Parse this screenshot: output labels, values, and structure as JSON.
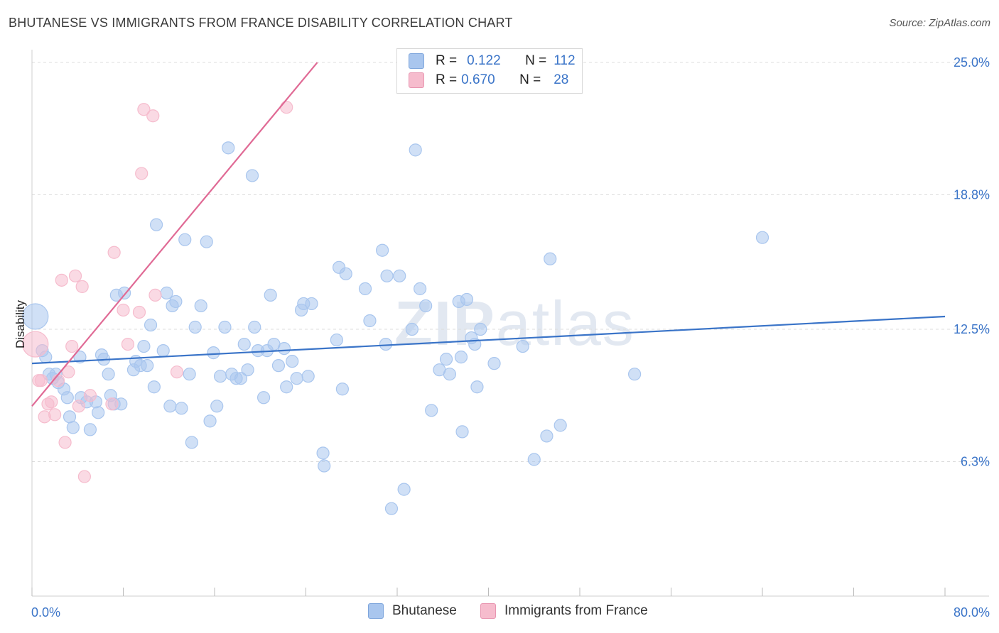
{
  "header": {
    "title": "BHUTANESE VS IMMIGRANTS FROM FRANCE DISABILITY CORRELATION CHART",
    "source": "Source: ZipAtlas.com"
  },
  "watermark": {
    "bold": "ZIP",
    "light": "atlas"
  },
  "legend": {
    "rows": [
      {
        "r_label": "R =",
        "r_value": "0.122",
        "n_label": "N =",
        "n_value": "112",
        "color": "#a9c6ee"
      },
      {
        "r_label": "R =",
        "r_value": "0.670",
        "n_label": "N =",
        "n_value": "28",
        "color": "#f6bccd"
      }
    ]
  },
  "bottom_legend": {
    "items": [
      {
        "label": "Bhutanese",
        "color": "#a9c6ee"
      },
      {
        "label": "Immigrants from France",
        "color": "#f6bccd"
      }
    ]
  },
  "chart_data": {
    "type": "scatter",
    "title": "BHUTANESE VS IMMIGRANTS FROM FRANCE DISABILITY CORRELATION CHART",
    "xlabel": "",
    "ylabel": "Disability",
    "xlim": [
      0,
      80
    ],
    "ylim": [
      0,
      25.6
    ],
    "x_tick_labels": [
      "0.0%",
      "80.0%"
    ],
    "y_ticks": [
      6.3,
      12.5,
      18.8,
      25.0
    ],
    "y_tick_labels": [
      "6.3%",
      "12.5%",
      "18.8%",
      "25.0%"
    ],
    "grid": true,
    "legend_position": "top-center",
    "series": [
      {
        "name": "Bhutanese",
        "color": "#3a74c8",
        "fill": "#a9c6ee",
        "trend": {
          "x": [
            0,
            80
          ],
          "y": [
            10.9,
            13.1
          ]
        },
        "points": [
          [
            0.3,
            13.1
          ],
          [
            0.9,
            11.5
          ],
          [
            1.2,
            11.2
          ],
          [
            1.5,
            10.4
          ],
          [
            1.8,
            10.2
          ],
          [
            2.1,
            10.4
          ],
          [
            2.3,
            10.0
          ],
          [
            2.8,
            9.7
          ],
          [
            3.1,
            9.3
          ],
          [
            3.3,
            8.4
          ],
          [
            3.6,
            7.9
          ],
          [
            4.2,
            11.2
          ],
          [
            4.3,
            9.3
          ],
          [
            4.8,
            9.1
          ],
          [
            5.1,
            7.8
          ],
          [
            5.6,
            9.1
          ],
          [
            5.8,
            8.6
          ],
          [
            6.1,
            11.3
          ],
          [
            6.3,
            11.1
          ],
          [
            6.7,
            10.4
          ],
          [
            6.9,
            9.4
          ],
          [
            7.2,
            9.0
          ],
          [
            7.4,
            14.1
          ],
          [
            7.8,
            9.0
          ],
          [
            8.1,
            14.2
          ],
          [
            8.9,
            10.6
          ],
          [
            9.1,
            11.0
          ],
          [
            9.5,
            10.8
          ],
          [
            9.8,
            11.7
          ],
          [
            10.1,
            10.8
          ],
          [
            10.4,
            12.7
          ],
          [
            10.7,
            9.8
          ],
          [
            10.9,
            17.4
          ],
          [
            11.5,
            11.5
          ],
          [
            11.8,
            14.2
          ],
          [
            12.1,
            8.9
          ],
          [
            12.3,
            13.6
          ],
          [
            12.6,
            13.8
          ],
          [
            13.1,
            8.8
          ],
          [
            13.4,
            16.7
          ],
          [
            13.8,
            10.4
          ],
          [
            14.0,
            7.2
          ],
          [
            14.3,
            12.6
          ],
          [
            14.8,
            13.6
          ],
          [
            15.3,
            16.6
          ],
          [
            15.6,
            8.2
          ],
          [
            15.9,
            11.4
          ],
          [
            16.2,
            8.9
          ],
          [
            16.5,
            10.3
          ],
          [
            16.9,
            12.6
          ],
          [
            17.2,
            21.0
          ],
          [
            17.5,
            10.4
          ],
          [
            17.9,
            10.2
          ],
          [
            18.3,
            10.2
          ],
          [
            18.6,
            11.8
          ],
          [
            18.9,
            10.6
          ],
          [
            19.3,
            19.7
          ],
          [
            19.5,
            12.6
          ],
          [
            19.8,
            11.5
          ],
          [
            20.3,
            9.3
          ],
          [
            20.6,
            11.5
          ],
          [
            20.9,
            14.1
          ],
          [
            21.2,
            11.8
          ],
          [
            21.6,
            10.8
          ],
          [
            22.1,
            11.6
          ],
          [
            22.3,
            9.8
          ],
          [
            22.8,
            11.0
          ],
          [
            23.2,
            10.2
          ],
          [
            23.6,
            13.4
          ],
          [
            23.8,
            13.7
          ],
          [
            24.2,
            10.3
          ],
          [
            24.5,
            13.7
          ],
          [
            25.5,
            6.7
          ],
          [
            25.6,
            6.1
          ],
          [
            26.7,
            12.0
          ],
          [
            26.9,
            15.4
          ],
          [
            27.2,
            9.7
          ],
          [
            27.5,
            15.1
          ],
          [
            29.2,
            14.4
          ],
          [
            29.6,
            12.9
          ],
          [
            30.7,
            16.2
          ],
          [
            31.0,
            11.8
          ],
          [
            31.1,
            15.0
          ],
          [
            31.5,
            4.1
          ],
          [
            32.2,
            15.0
          ],
          [
            32.6,
            5.0
          ],
          [
            33.3,
            12.5
          ],
          [
            33.6,
            20.9
          ],
          [
            34.0,
            14.4
          ],
          [
            34.5,
            13.6
          ],
          [
            35.0,
            8.7
          ],
          [
            35.7,
            10.6
          ],
          [
            36.3,
            11.1
          ],
          [
            36.6,
            10.4
          ],
          [
            37.4,
            13.8
          ],
          [
            37.6,
            11.2
          ],
          [
            37.7,
            7.7
          ],
          [
            38.1,
            13.9
          ],
          [
            38.5,
            12.1
          ],
          [
            38.8,
            11.8
          ],
          [
            39.0,
            9.8
          ],
          [
            39.3,
            12.5
          ],
          [
            40.5,
            10.9
          ],
          [
            43.0,
            11.7
          ],
          [
            44.0,
            6.4
          ],
          [
            45.1,
            7.5
          ],
          [
            45.4,
            15.8
          ],
          [
            46.3,
            8.0
          ],
          [
            52.8,
            10.4
          ],
          [
            64.0,
            16.8
          ]
        ],
        "large_points": [
          [
            0.3,
            13.1
          ]
        ]
      },
      {
        "name": "Immigrants from France",
        "color": "#e06a95",
        "fill": "#f6bccd",
        "trend": {
          "x": [
            0,
            25.0
          ],
          "y": [
            8.9,
            25.0
          ]
        },
        "points": [
          [
            0.3,
            11.8
          ],
          [
            0.6,
            10.1
          ],
          [
            0.8,
            10.1
          ],
          [
            1.1,
            8.4
          ],
          [
            1.4,
            9.0
          ],
          [
            1.7,
            9.1
          ],
          [
            2.0,
            8.5
          ],
          [
            2.3,
            10.1
          ],
          [
            2.6,
            14.8
          ],
          [
            2.9,
            7.2
          ],
          [
            3.2,
            10.5
          ],
          [
            3.5,
            11.7
          ],
          [
            3.8,
            15.0
          ],
          [
            4.1,
            8.9
          ],
          [
            4.4,
            14.5
          ],
          [
            4.6,
            5.6
          ],
          [
            5.1,
            9.4
          ],
          [
            7.0,
            9.0
          ],
          [
            7.2,
            16.1
          ],
          [
            8.0,
            13.4
          ],
          [
            8.4,
            11.8
          ],
          [
            9.4,
            13.3
          ],
          [
            9.6,
            19.8
          ],
          [
            9.8,
            22.8
          ],
          [
            10.6,
            22.5
          ],
          [
            10.8,
            14.1
          ],
          [
            12.7,
            10.5
          ],
          [
            22.3,
            22.9
          ]
        ],
        "large_points": [
          [
            0.3,
            11.8
          ]
        ]
      }
    ]
  }
}
